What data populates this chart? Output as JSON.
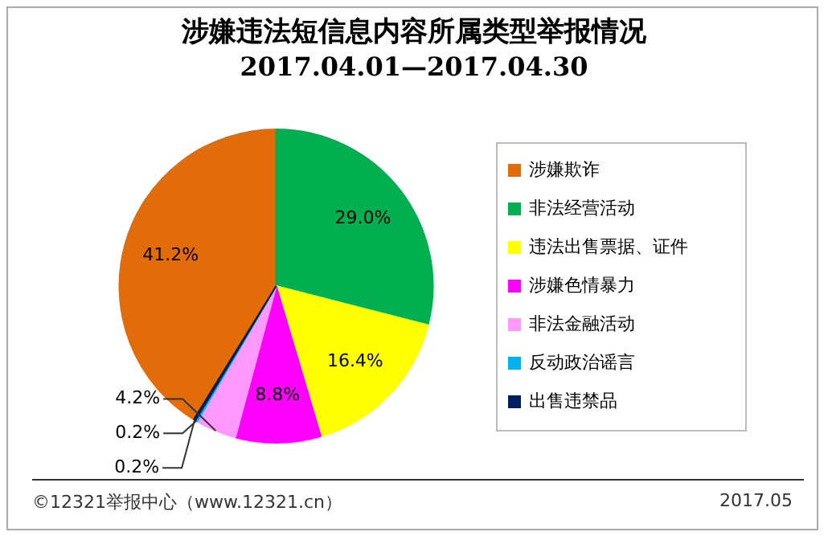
{
  "chart_data": {
    "type": "pie",
    "title": "涉嫌违法短信息内容所属类型举报情况",
    "subtitle": "2017.04.01—2017.04.30",
    "categories": [
      "涉嫌欺诈",
      "非法经营活动",
      "违法出售票据、证件",
      "涉嫌色情暴力",
      "非法金融活动",
      "反动政治谣言",
      "出售违禁品"
    ],
    "values": [
      41.2,
      29.0,
      16.4,
      8.8,
      4.2,
      0.2,
      0.2
    ],
    "value_labels": [
      "41.2%",
      "29.0%",
      "16.4%",
      "8.8%",
      "4.2%",
      "0.2%",
      "0.2%"
    ],
    "colors": [
      "#e36c0a",
      "#00b050",
      "#ffff00",
      "#ff00ff",
      "#ff99ff",
      "#00b0f0",
      "#002060"
    ],
    "legend": "right",
    "annotations": [
      "©12321举报中心（www.12321.cn）",
      "2017.05"
    ]
  }
}
